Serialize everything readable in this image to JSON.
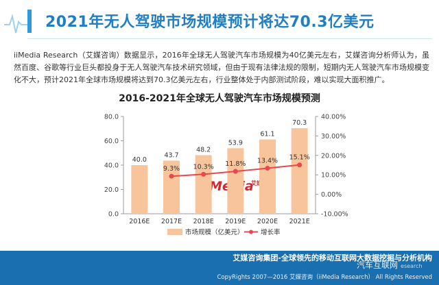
{
  "header": {
    "title": "2021年无人驾驶市场规模预计将达70.3亿美元"
  },
  "intro_text": "iiMedia Research（艾媒咨询）数据显示，2016年全球无人驾驶汽车市场规模为40亿美元左右，艾媒咨询分析师认为，虽然百度、谷歌等行业巨头都投身于无人驾驶汽车技术研究领域，但由于现有法律法规的限制，短期内无人驾驶汽车市场规模变化不大，预计2021年全球市场规模将达到70.3亿美元左右，行业整体处于内部测试阶段，难以实现大面积推广。",
  "chart_data": {
    "type": "bar",
    "title": "2016-2021年全球无人驾驶汽车市场规模预测",
    "categories": [
      "2016E",
      "2017E",
      "2018E",
      "2019E",
      "2020E",
      "2021E"
    ],
    "series": [
      {
        "name": "市场规模（亿美元）",
        "type": "bar",
        "values": [
          40.0,
          43.7,
          48.2,
          53.9,
          61.1,
          70.3
        ],
        "labels": [
          "40.0",
          "43.7",
          "48.2",
          "53.9",
          "61.1",
          "70.3"
        ]
      },
      {
        "name": "增长率",
        "type": "line",
        "values": [
          null,
          9.3,
          10.3,
          11.8,
          13.4,
          15.1
        ],
        "labels": [
          "",
          "9.3%",
          "10.3%",
          "11.8%",
          "13.4%",
          "15.1%"
        ]
      }
    ],
    "ylim_left": [
      0,
      80
    ],
    "yticks_left": [
      "0.0",
      "20.0",
      "40.0",
      "60.0",
      "80.0"
    ],
    "ylim_right": [
      -10,
      40
    ],
    "yticks_right": [
      "-10.00%",
      "0.00%",
      "10.00%",
      "20.00%",
      "30.00%",
      "40.00%"
    ],
    "legend_position": "bottom",
    "colors": {
      "bar": "#f7c49b",
      "line": "#e8474c",
      "axis": "#999999"
    },
    "watermark_brand": "iiMedia",
    "watermark_cn": "艾媒咨询"
  },
  "footer": {
    "slogan": "艾媒咨询集团-全球领先的移动互联网大数据挖掘与分析机构",
    "copyright": "CopyRights 2007—2016 艾媒咨询（iiMedia Research） All Rights Reserved"
  },
  "overlay_watermark": {
    "text": "汽车互联网",
    "sub": "esearch"
  }
}
